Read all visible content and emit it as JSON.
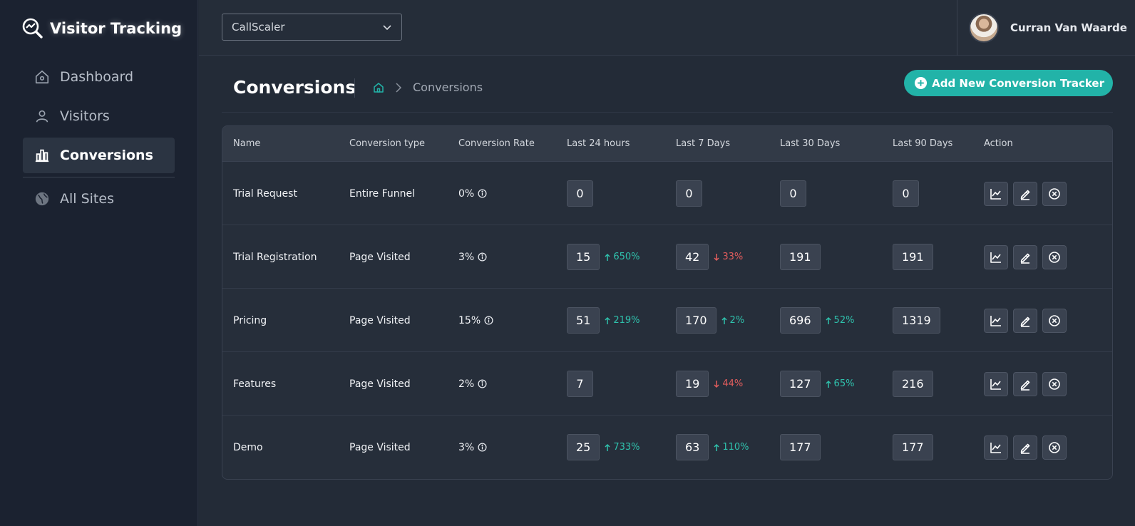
{
  "app": {
    "title": "Visitor Tracking"
  },
  "sidebar": {
    "items": [
      {
        "label": "Dashboard",
        "icon": "home-icon",
        "active": false
      },
      {
        "label": "Visitors",
        "icon": "user-icon",
        "active": false
      },
      {
        "label": "Conversions",
        "icon": "bar-chart-icon",
        "active": true
      },
      {
        "label": "All Sites",
        "icon": "globe-icon",
        "active": false
      }
    ]
  },
  "topbar": {
    "site_select": {
      "value": "CallScaler"
    },
    "user": {
      "name": "Curran Van Waarde"
    }
  },
  "page": {
    "title": "Conversions",
    "breadcrumb": {
      "current": "Conversions"
    },
    "add_button_label": "Add New Conversion Tracker"
  },
  "colors": {
    "accent": "#22b3a8",
    "up": "#2fc2ad",
    "down": "#e25d5d"
  },
  "table": {
    "headers": [
      "Name",
      "Conversion type",
      "Conversion Rate",
      "Last 24 hours",
      "Last 7 Days",
      "Last 30 Days",
      "Last 90 Days",
      "Action"
    ],
    "rows": [
      {
        "name": "Trial Request",
        "type": "Entire Funnel",
        "rate": "0%",
        "d24": {
          "value": "0",
          "delta": "",
          "dir": ""
        },
        "d7": {
          "value": "0",
          "delta": "",
          "dir": ""
        },
        "d30": {
          "value": "0",
          "delta": "",
          "dir": ""
        },
        "d90": {
          "value": "0"
        }
      },
      {
        "name": "Trial Registration",
        "type": "Page Visited",
        "rate": "3%",
        "d24": {
          "value": "15",
          "delta": "650%",
          "dir": "up"
        },
        "d7": {
          "value": "42",
          "delta": "33%",
          "dir": "down"
        },
        "d30": {
          "value": "191",
          "delta": "",
          "dir": ""
        },
        "d90": {
          "value": "191"
        }
      },
      {
        "name": "Pricing",
        "type": "Page Visited",
        "rate": "15%",
        "d24": {
          "value": "51",
          "delta": "219%",
          "dir": "up"
        },
        "d7": {
          "value": "170",
          "delta": "2%",
          "dir": "up"
        },
        "d30": {
          "value": "696",
          "delta": "52%",
          "dir": "up"
        },
        "d90": {
          "value": "1319"
        }
      },
      {
        "name": "Features",
        "type": "Page Visited",
        "rate": "2%",
        "d24": {
          "value": "7",
          "delta": "",
          "dir": ""
        },
        "d7": {
          "value": "19",
          "delta": "44%",
          "dir": "down"
        },
        "d30": {
          "value": "127",
          "delta": "65%",
          "dir": "up"
        },
        "d90": {
          "value": "216"
        }
      },
      {
        "name": "Demo",
        "type": "Page Visited",
        "rate": "3%",
        "d24": {
          "value": "25",
          "delta": "733%",
          "dir": "up"
        },
        "d7": {
          "value": "63",
          "delta": "110%",
          "dir": "up"
        },
        "d30": {
          "value": "177",
          "delta": "",
          "dir": ""
        },
        "d90": {
          "value": "177"
        }
      }
    ]
  }
}
